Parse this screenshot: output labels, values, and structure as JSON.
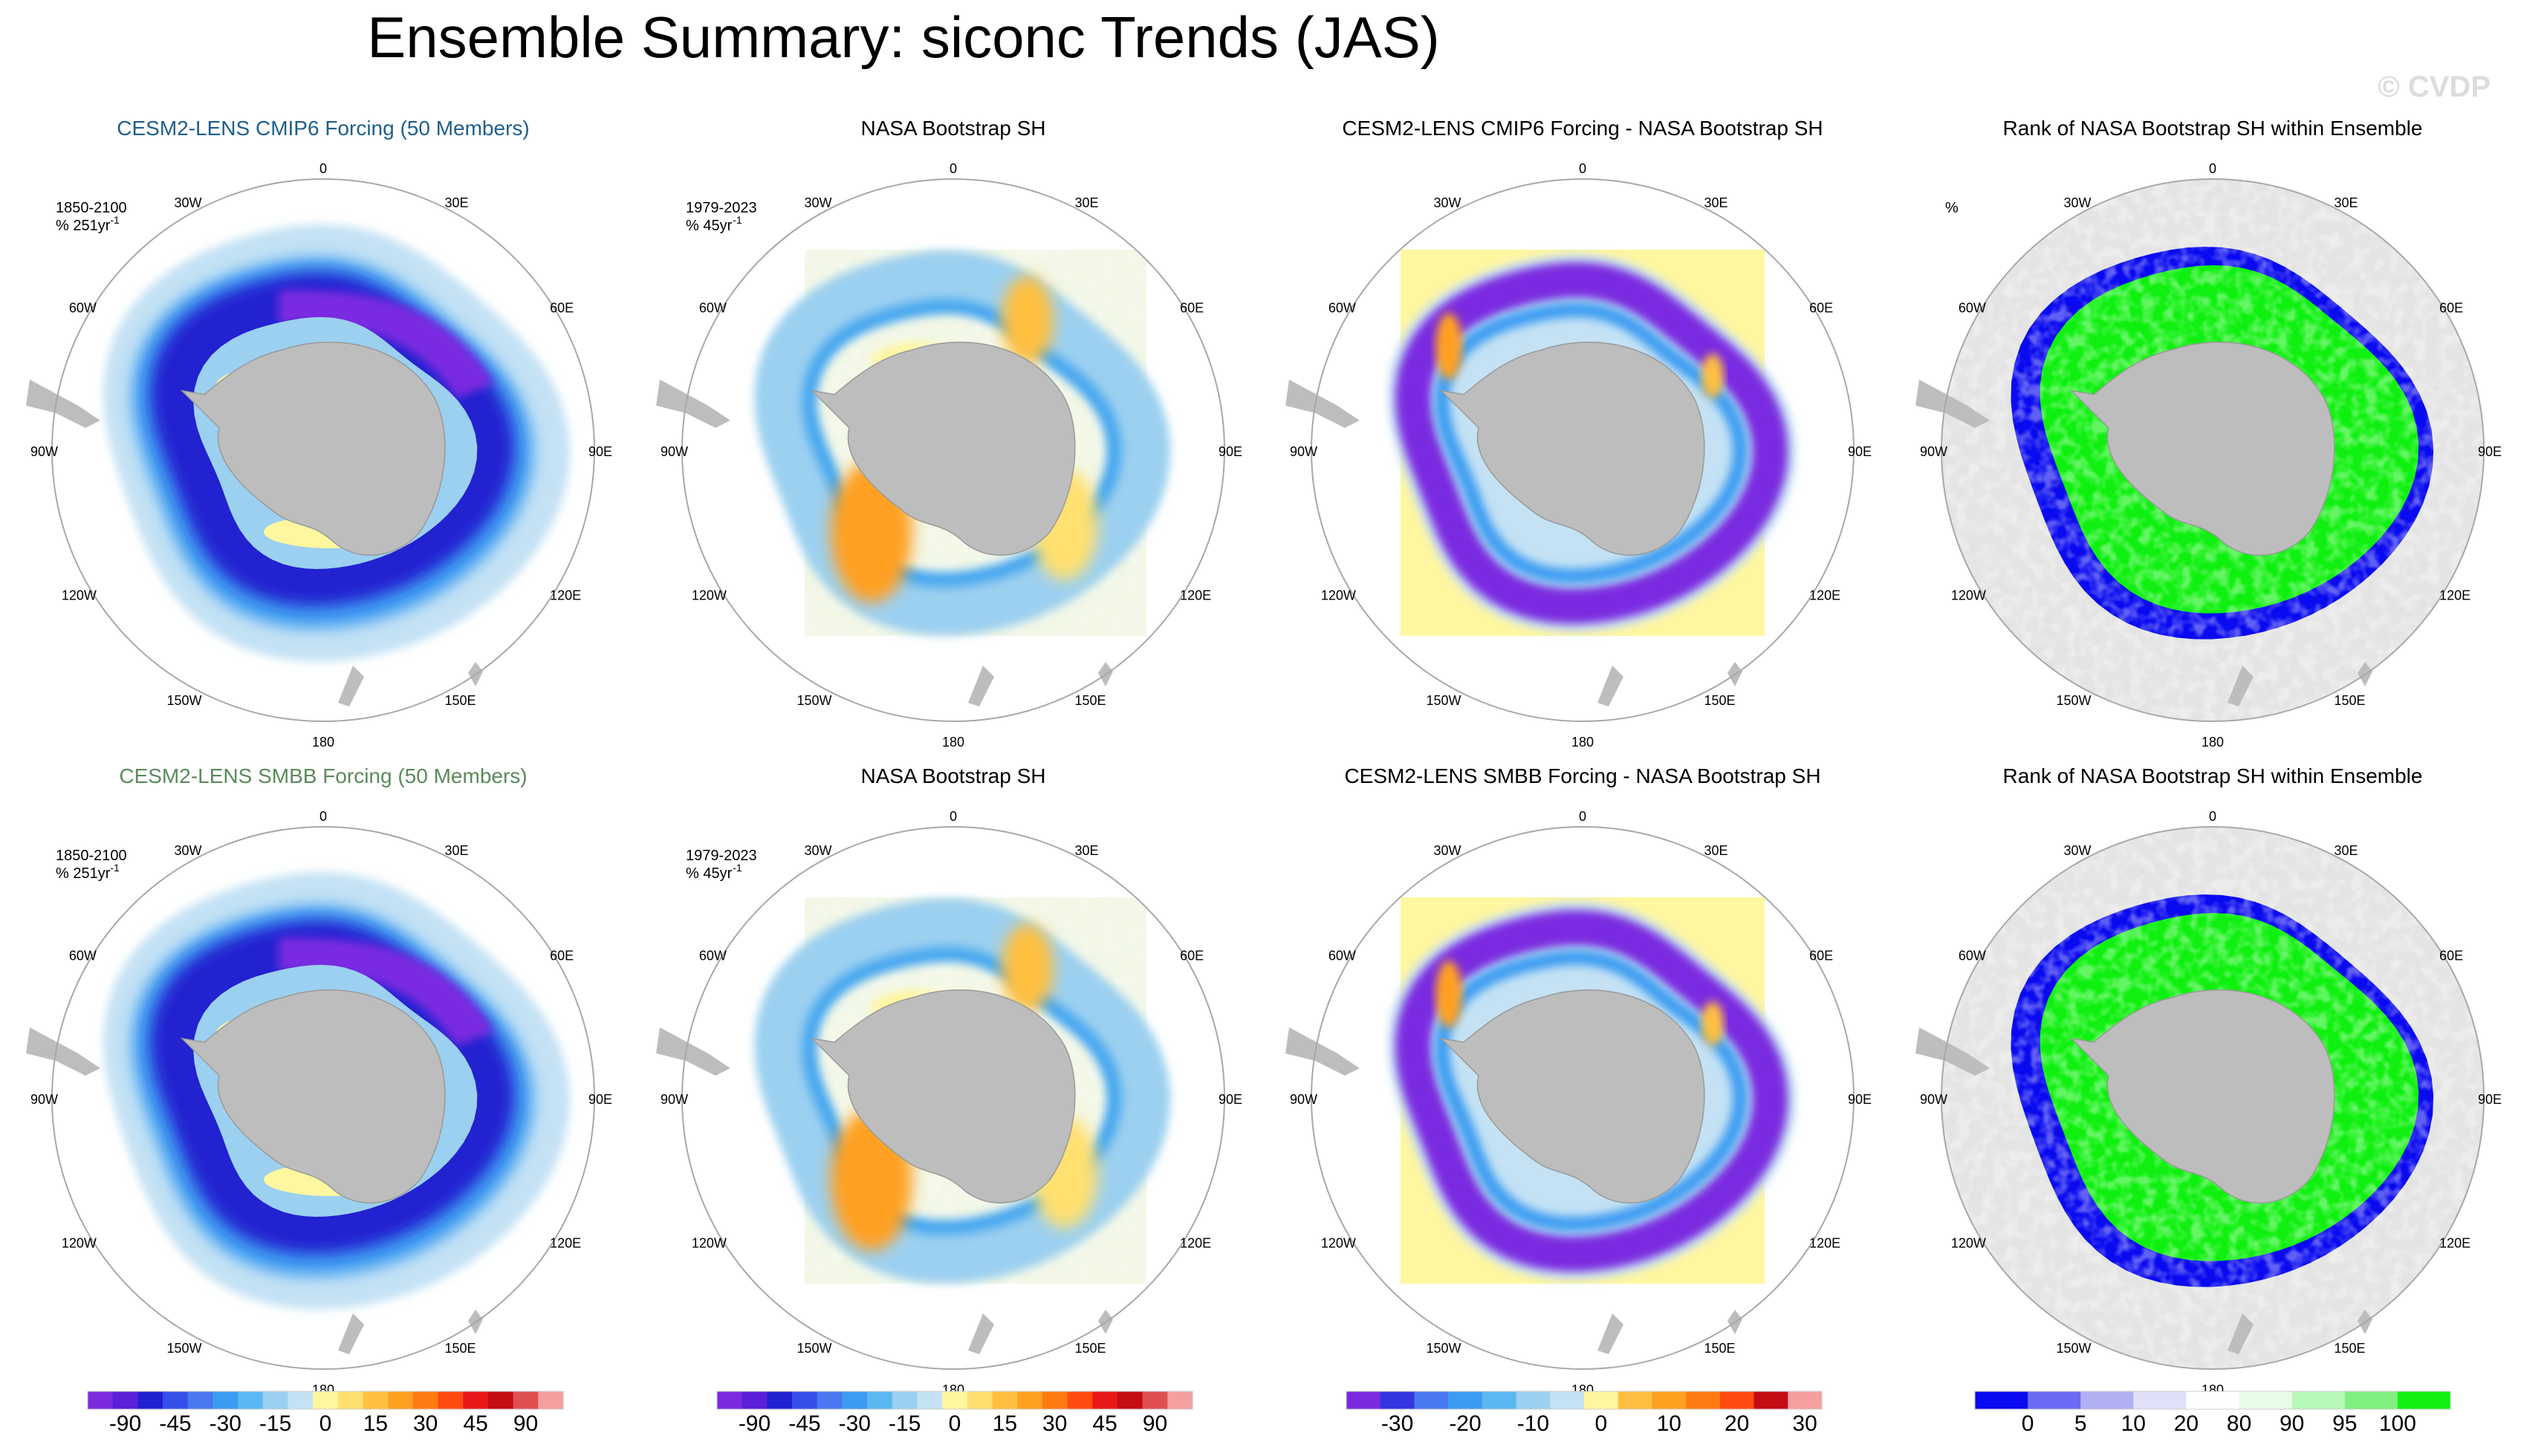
{
  "title": "Ensemble Summary: siconc Trends (JAS)",
  "watermark": "© CVDP",
  "colors": {
    "land": "#bdbdbd",
    "rank_bg": "#e4e4e4",
    "row1_title": "#1f5f8b",
    "row2_title": "#5a8a5a",
    "ring": "#a8a8a8"
  },
  "longitude_labels": [
    "0",
    "30E",
    "60E",
    "90E",
    "120E",
    "150E",
    "180",
    "150W",
    "120W",
    "90W",
    "60W",
    "30W"
  ],
  "rows": [
    {
      "panels": [
        {
          "title": "CESM2-LENS CMIP6 Forcing (50 Members)",
          "title_color": "#1f5f8b",
          "period": "1850-2100",
          "units": "% 251yr",
          "units_sup": "-1",
          "kind": "model"
        },
        {
          "title": "NASA Bootstrap SH",
          "title_color": "#000000",
          "period": "1979-2023",
          "units": "% 45yr",
          "units_sup": "-1",
          "kind": "obs"
        },
        {
          "title": "CESM2-LENS CMIP6 Forcing - NASA Bootstrap SH",
          "title_color": "#000000",
          "period": "",
          "units": "",
          "units_sup": "",
          "kind": "diff"
        },
        {
          "title": "Rank of NASA Bootstrap SH within Ensemble",
          "title_color": "#000000",
          "period": "",
          "units": "%",
          "units_sup": "",
          "kind": "rank"
        }
      ]
    },
    {
      "panels": [
        {
          "title": "CESM2-LENS SMBB Forcing (50 Members)",
          "title_color": "#5a8a5a",
          "period": "1850-2100",
          "units": "% 251yr",
          "units_sup": "-1",
          "kind": "model"
        },
        {
          "title": "NASA Bootstrap SH",
          "title_color": "#000000",
          "period": "1979-2023",
          "units": "% 45yr",
          "units_sup": "-1",
          "kind": "obs"
        },
        {
          "title": "CESM2-LENS SMBB Forcing - NASA Bootstrap SH",
          "title_color": "#000000",
          "period": "",
          "units": "",
          "units_sup": "",
          "kind": "diff"
        },
        {
          "title": "Rank of NASA Bootstrap SH within Ensemble",
          "title_color": "#000000",
          "period": "",
          "units": "",
          "units_sup": "",
          "kind": "rank"
        }
      ]
    }
  ],
  "colorbars": [
    {
      "name": "trend-colorbar-model",
      "colors": [
        "#7a2be0",
        "#5a1fd6",
        "#2020d0",
        "#3450e8",
        "#4a78f0",
        "#3c9cf2",
        "#5cb8f2",
        "#9cd0f0",
        "#c4e2f4",
        "#fff6a0",
        "#ffe070",
        "#ffc040",
        "#ffa020",
        "#ff7a10",
        "#ff4a10",
        "#e81818",
        "#c40c14",
        "#e05050",
        "#f4a0a0"
      ],
      "labels": [
        "-90",
        "-45",
        "-30",
        "-15",
        "0",
        "15",
        "30",
        "45",
        "90"
      ]
    },
    {
      "name": "trend-colorbar-obs",
      "colors": [
        "#7a2be0",
        "#5a1fd6",
        "#2020d0",
        "#3450e8",
        "#4a78f0",
        "#3c9cf2",
        "#5cb8f2",
        "#9cd0f0",
        "#c4e2f4",
        "#fff6a0",
        "#ffe070",
        "#ffc040",
        "#ffa020",
        "#ff7a10",
        "#ff4a10",
        "#e81818",
        "#c40c14",
        "#e05050",
        "#f4a0a0"
      ],
      "labels": [
        "-90",
        "-45",
        "-30",
        "-15",
        "0",
        "15",
        "30",
        "45",
        "90"
      ]
    },
    {
      "name": "difference-colorbar",
      "colors": [
        "#7a2be0",
        "#3434e0",
        "#4a78f0",
        "#3c9cf2",
        "#5cb8f2",
        "#9cd0f0",
        "#c4e2f4",
        "#fff6a0",
        "#ffc040",
        "#ffa020",
        "#ff7a10",
        "#ff4a10",
        "#c40c14",
        "#f4a0a0"
      ],
      "labels": [
        "-30",
        "-20",
        "-10",
        "0",
        "10",
        "20",
        "30"
      ]
    },
    {
      "name": "rank-colorbar",
      "colors": [
        "#0a0af0",
        "#6a6af4",
        "#b0b0f2",
        "#e0e0f8",
        "#ffffff",
        "#e8fce8",
        "#b8f8b8",
        "#80f080",
        "#10f010"
      ],
      "labels": [
        "0",
        "5",
        "10",
        "20",
        "80",
        "90",
        "95",
        "100"
      ]
    }
  ]
}
